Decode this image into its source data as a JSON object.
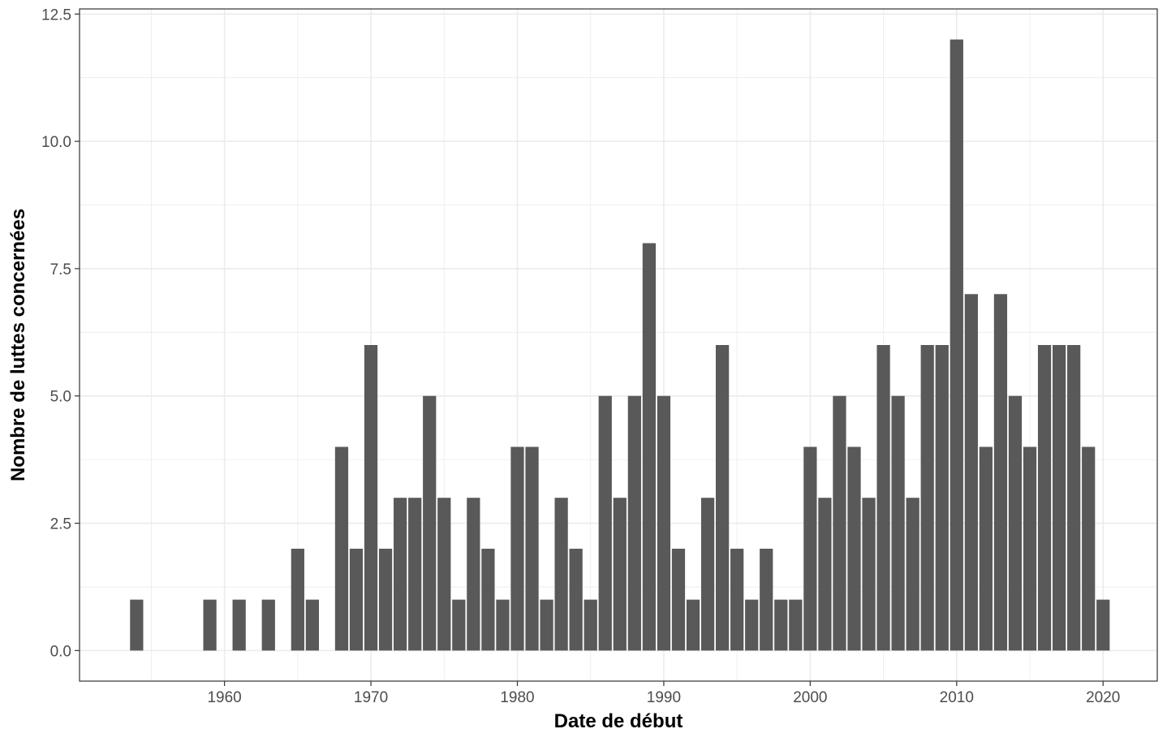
{
  "chart_data": {
    "type": "bar",
    "title": "",
    "xlabel": "Date de début",
    "ylabel": "Nombre de luttes concernées",
    "xlim": [
      1950.1,
      2023.7
    ],
    "ylim": [
      -0.6,
      12.6
    ],
    "x_ticks": [
      1960,
      1970,
      1980,
      1990,
      2000,
      2010,
      2020
    ],
    "y_ticks": [
      0.0,
      2.5,
      5.0,
      7.5,
      10.0,
      12.5
    ],
    "y_tick_labels": [
      "0.0",
      "2.5",
      "5.0",
      "7.5",
      "10.0",
      "12.5"
    ],
    "grid": true,
    "bar_color": "#595959",
    "grid_color": "#ebebeb",
    "panel_border_color": "#333333",
    "x": [
      1954,
      1959,
      1961,
      1963,
      1965,
      1966,
      1968,
      1969,
      1970,
      1971,
      1972,
      1973,
      1974,
      1975,
      1976,
      1977,
      1978,
      1979,
      1980,
      1981,
      1982,
      1983,
      1984,
      1985,
      1986,
      1987,
      1988,
      1989,
      1990,
      1991,
      1992,
      1993,
      1994,
      1995,
      1996,
      1997,
      1998,
      1999,
      2000,
      2001,
      2002,
      2003,
      2004,
      2005,
      2006,
      2007,
      2008,
      2009,
      2010,
      2011,
      2012,
      2013,
      2014,
      2015,
      2016,
      2017,
      2018,
      2019,
      2020
    ],
    "values": [
      1,
      1,
      1,
      1,
      2,
      1,
      4,
      2,
      6,
      2,
      3,
      3,
      5,
      3,
      1,
      3,
      2,
      1,
      4,
      4,
      1,
      3,
      2,
      1,
      5,
      3,
      5,
      8,
      5,
      2,
      1,
      3,
      6,
      2,
      1,
      2,
      1,
      1,
      4,
      3,
      5,
      4,
      3,
      6,
      5,
      3,
      6,
      6,
      12,
      7,
      4,
      7,
      5,
      4,
      6,
      6,
      6,
      4,
      1
    ]
  }
}
